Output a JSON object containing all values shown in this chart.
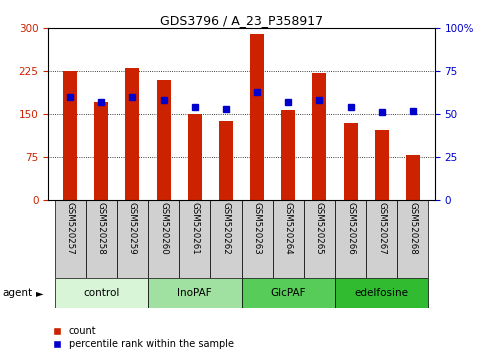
{
  "title": "GDS3796 / A_23_P358917",
  "samples": [
    "GSM520257",
    "GSM520258",
    "GSM520259",
    "GSM520260",
    "GSM520261",
    "GSM520262",
    "GSM520263",
    "GSM520264",
    "GSM520265",
    "GSM520266",
    "GSM520267",
    "GSM520268"
  ],
  "counts": [
    225,
    172,
    230,
    210,
    150,
    138,
    290,
    158,
    222,
    135,
    122,
    78
  ],
  "percentiles": [
    60,
    57,
    60,
    58,
    54,
    53,
    63,
    57,
    58,
    54,
    51,
    52
  ],
  "ylim_left": [
    0,
    300
  ],
  "ylim_right": [
    0,
    100
  ],
  "yticks_left": [
    0,
    75,
    150,
    225,
    300
  ],
  "ytick_labels_left": [
    "0",
    "75",
    "150",
    "225",
    "300"
  ],
  "yticks_right": [
    0,
    25,
    50,
    75,
    100
  ],
  "ytick_labels_right": [
    "0",
    "25",
    "50",
    "75",
    "100%"
  ],
  "groups": [
    {
      "label": "control",
      "start": 0,
      "end": 3,
      "color": "#d8f5d8"
    },
    {
      "label": "InoPAF",
      "start": 3,
      "end": 6,
      "color": "#a0e0a0"
    },
    {
      "label": "GlcPAF",
      "start": 6,
      "end": 9,
      "color": "#58cc58"
    },
    {
      "label": "edelfosine",
      "start": 9,
      "end": 12,
      "color": "#30bb30"
    }
  ],
  "bar_color": "#cc2200",
  "dot_color": "#0000cc",
  "bar_width": 0.45,
  "legend_items": [
    {
      "label": "count",
      "color": "#cc2200"
    },
    {
      "label": "percentile rank within the sample",
      "color": "#0000cc"
    }
  ],
  "agent_label": "agent",
  "xlabel_area_color": "#d0d0d0",
  "background_color": "#ffffff"
}
